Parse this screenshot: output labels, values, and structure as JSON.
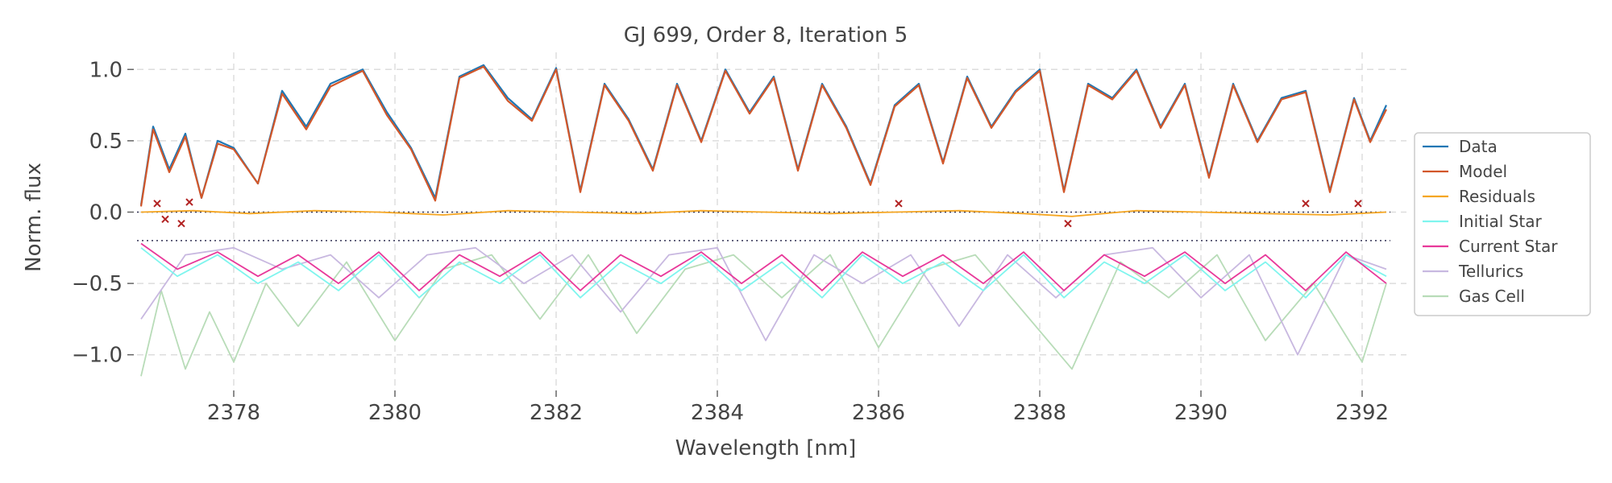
{
  "chart_data": {
    "type": "line",
    "title": "GJ 699, Order 8, Iteration 5",
    "xlabel": "Wavelength [nm]",
    "ylabel": "Norm. flux",
    "xlim": [
      2376.8,
      2392.55
    ],
    "ylim": [
      -1.25,
      1.12
    ],
    "xticks": [
      2378,
      2380,
      2382,
      2384,
      2386,
      2388,
      2390,
      2392
    ],
    "xtick_labels": [
      "2378",
      "2380",
      "2382",
      "2384",
      "2386",
      "2388",
      "2390",
      "2392"
    ],
    "yticks": [
      1.0,
      0.5,
      0.0,
      -0.5,
      -1.0
    ],
    "ytick_labels": [
      "1.0",
      "0.5",
      "0.0",
      "−0.5",
      "−1.0"
    ],
    "grid": true,
    "legend_position": "right",
    "reference_lines": [
      0.0,
      -0.2
    ],
    "series": [
      {
        "name": "Data",
        "color": "#1f77b4",
        "x": [
          2376.85,
          2377.0,
          2377.2,
          2377.4,
          2377.6,
          2377.8,
          2378.0,
          2378.3,
          2378.6,
          2378.9,
          2379.2,
          2379.6,
          2379.9,
          2380.2,
          2380.5,
          2380.8,
          2381.1,
          2381.4,
          2381.7,
          2382.0,
          2382.3,
          2382.6,
          2382.9,
          2383.2,
          2383.5,
          2383.8,
          2384.1,
          2384.4,
          2384.7,
          2385.0,
          2385.3,
          2385.6,
          2385.9,
          2386.2,
          2386.5,
          2386.8,
          2387.1,
          2387.4,
          2387.7,
          2388.0,
          2388.3,
          2388.6,
          2388.9,
          2389.2,
          2389.5,
          2389.8,
          2390.1,
          2390.4,
          2390.7,
          2391.0,
          2391.3,
          2391.6,
          2391.9,
          2392.1,
          2392.3
        ],
        "y": [
          0.05,
          0.6,
          0.3,
          0.55,
          0.1,
          0.5,
          0.45,
          0.2,
          0.85,
          0.6,
          0.9,
          1.0,
          0.7,
          0.45,
          0.1,
          0.95,
          1.03,
          0.8,
          0.65,
          1.01,
          0.15,
          0.9,
          0.65,
          0.3,
          0.9,
          0.5,
          1.0,
          0.7,
          0.95,
          0.3,
          0.9,
          0.6,
          0.2,
          0.75,
          0.9,
          0.35,
          0.95,
          0.6,
          0.85,
          1.0,
          0.15,
          0.9,
          0.8,
          1.0,
          0.6,
          0.9,
          0.25,
          0.9,
          0.5,
          0.8,
          0.85,
          0.15,
          0.8,
          0.5,
          0.75
        ]
      },
      {
        "name": "Model",
        "color": "#d2572a",
        "x": [
          2376.85,
          2377.0,
          2377.2,
          2377.4,
          2377.6,
          2377.8,
          2378.0,
          2378.3,
          2378.6,
          2378.9,
          2379.2,
          2379.6,
          2379.9,
          2380.2,
          2380.5,
          2380.8,
          2381.1,
          2381.4,
          2381.7,
          2382.0,
          2382.3,
          2382.6,
          2382.9,
          2383.2,
          2383.5,
          2383.8,
          2384.1,
          2384.4,
          2384.7,
          2385.0,
          2385.3,
          2385.6,
          2385.9,
          2386.2,
          2386.5,
          2386.8,
          2387.1,
          2387.4,
          2387.7,
          2388.0,
          2388.3,
          2388.6,
          2388.9,
          2389.2,
          2389.5,
          2389.8,
          2390.1,
          2390.4,
          2390.7,
          2391.0,
          2391.3,
          2391.6,
          2391.9,
          2392.1,
          2392.3
        ],
        "y": [
          0.04,
          0.58,
          0.28,
          0.53,
          0.1,
          0.48,
          0.44,
          0.2,
          0.83,
          0.58,
          0.88,
          0.99,
          0.68,
          0.44,
          0.08,
          0.94,
          1.02,
          0.78,
          0.64,
          1.0,
          0.14,
          0.89,
          0.64,
          0.29,
          0.89,
          0.49,
          0.99,
          0.69,
          0.94,
          0.29,
          0.89,
          0.59,
          0.19,
          0.74,
          0.89,
          0.34,
          0.94,
          0.59,
          0.84,
          0.99,
          0.14,
          0.89,
          0.79,
          0.99,
          0.59,
          0.89,
          0.24,
          0.89,
          0.49,
          0.79,
          0.84,
          0.14,
          0.79,
          0.49,
          0.72
        ]
      },
      {
        "name": "Residuals",
        "color": "#f5a623",
        "x": [
          2376.85,
          2377.5,
          2378.2,
          2379.0,
          2379.8,
          2380.6,
          2381.4,
          2382.2,
          2383.0,
          2383.8,
          2384.6,
          2385.4,
          2386.2,
          2387.0,
          2387.8,
          2388.4,
          2389.2,
          2390.0,
          2390.8,
          2391.6,
          2392.3
        ],
        "y": [
          0.0,
          0.01,
          -0.01,
          0.01,
          0.0,
          -0.02,
          0.01,
          0.0,
          -0.01,
          0.01,
          0.0,
          -0.01,
          0.0,
          0.01,
          -0.01,
          -0.03,
          0.01,
          0.0,
          -0.01,
          -0.02,
          0.0
        ]
      },
      {
        "name": "Initial Star",
        "color": "#7ff5ee",
        "x": [
          2376.85,
          2377.3,
          2377.8,
          2378.3,
          2378.8,
          2379.3,
          2379.8,
          2380.3,
          2380.8,
          2381.3,
          2381.8,
          2382.3,
          2382.8,
          2383.3,
          2383.8,
          2384.3,
          2384.8,
          2385.3,
          2385.8,
          2386.3,
          2386.8,
          2387.3,
          2387.8,
          2388.3,
          2388.8,
          2389.3,
          2389.8,
          2390.3,
          2390.8,
          2391.3,
          2391.8,
          2392.3
        ],
        "y": [
          -0.25,
          -0.45,
          -0.3,
          -0.5,
          -0.35,
          -0.55,
          -0.3,
          -0.6,
          -0.35,
          -0.5,
          -0.3,
          -0.6,
          -0.35,
          -0.5,
          -0.3,
          -0.55,
          -0.35,
          -0.6,
          -0.3,
          -0.5,
          -0.35,
          -0.55,
          -0.3,
          -0.6,
          -0.35,
          -0.5,
          -0.3,
          -0.55,
          -0.35,
          -0.6,
          -0.3,
          -0.45
        ]
      },
      {
        "name": "Current Star",
        "color": "#e8399a",
        "x": [
          2376.85,
          2377.3,
          2377.8,
          2378.3,
          2378.8,
          2379.3,
          2379.8,
          2380.3,
          2380.8,
          2381.3,
          2381.8,
          2382.3,
          2382.8,
          2383.3,
          2383.8,
          2384.3,
          2384.8,
          2385.3,
          2385.8,
          2386.3,
          2386.8,
          2387.3,
          2387.8,
          2388.3,
          2388.8,
          2389.3,
          2389.8,
          2390.3,
          2390.8,
          2391.3,
          2391.8,
          2392.3
        ],
        "y": [
          -0.22,
          -0.4,
          -0.28,
          -0.45,
          -0.3,
          -0.5,
          -0.28,
          -0.55,
          -0.3,
          -0.45,
          -0.28,
          -0.55,
          -0.3,
          -0.45,
          -0.28,
          -0.5,
          -0.3,
          -0.55,
          -0.28,
          -0.45,
          -0.3,
          -0.5,
          -0.28,
          -0.55,
          -0.3,
          -0.45,
          -0.28,
          -0.5,
          -0.3,
          -0.55,
          -0.28,
          -0.5
        ]
      },
      {
        "name": "Tellurics",
        "color": "#c8b8e0",
        "x": [
          2376.85,
          2377.4,
          2378.0,
          2378.6,
          2379.2,
          2379.8,
          2380.4,
          2381.0,
          2381.6,
          2382.2,
          2382.8,
          2383.4,
          2384.0,
          2384.6,
          2385.2,
          2385.8,
          2386.4,
          2387.0,
          2387.6,
          2388.2,
          2388.8,
          2389.4,
          2390.0,
          2390.6,
          2391.2,
          2391.8,
          2392.3
        ],
        "y": [
          -0.75,
          -0.3,
          -0.25,
          -0.4,
          -0.3,
          -0.6,
          -0.3,
          -0.25,
          -0.5,
          -0.3,
          -0.7,
          -0.3,
          -0.25,
          -0.9,
          -0.3,
          -0.5,
          -0.3,
          -0.8,
          -0.3,
          -0.6,
          -0.3,
          -0.25,
          -0.6,
          -0.3,
          -1.0,
          -0.3,
          -0.4
        ]
      },
      {
        "name": "Gas Cell",
        "color": "#b8dcb8",
        "x": [
          2376.85,
          2377.1,
          2377.4,
          2377.7,
          2378.0,
          2378.4,
          2378.8,
          2379.4,
          2380.0,
          2380.6,
          2381.2,
          2381.8,
          2382.4,
          2383.0,
          2383.6,
          2384.2,
          2384.8,
          2385.4,
          2386.0,
          2386.6,
          2387.2,
          2387.8,
          2388.4,
          2389.0,
          2389.6,
          2390.2,
          2390.8,
          2391.4,
          2392.0,
          2392.3
        ],
        "y": [
          -1.15,
          -0.55,
          -1.1,
          -0.7,
          -1.05,
          -0.5,
          -0.8,
          -0.35,
          -0.9,
          -0.4,
          -0.3,
          -0.75,
          -0.3,
          -0.85,
          -0.4,
          -0.3,
          -0.6,
          -0.3,
          -0.95,
          -0.4,
          -0.3,
          -0.7,
          -1.1,
          -0.35,
          -0.6,
          -0.3,
          -0.9,
          -0.5,
          -1.05,
          -0.5
        ]
      }
    ],
    "outliers": {
      "color": "#b22222",
      "x": [
        2377.05,
        2377.15,
        2377.35,
        2377.45,
        2386.25,
        2388.35,
        2391.3,
        2391.95
      ],
      "y": [
        0.06,
        -0.05,
        -0.08,
        0.07,
        0.06,
        -0.08,
        0.06,
        0.06
      ]
    }
  }
}
